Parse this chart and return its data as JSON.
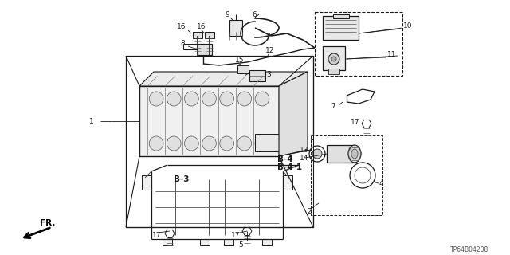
{
  "bg_color": "#ffffff",
  "part_code": "TP64B04208",
  "fig_width": 6.4,
  "fig_height": 3.2,
  "dpi": 100
}
